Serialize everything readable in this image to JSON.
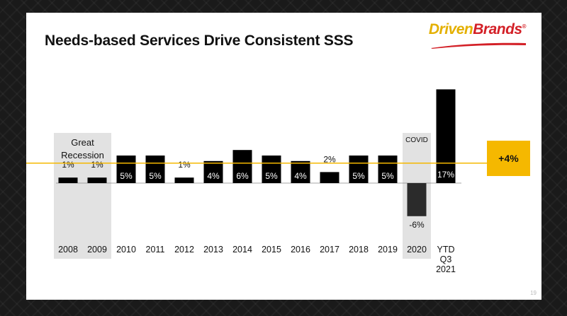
{
  "slide": {
    "title": "Needs-based Services Drive Consistent SSS",
    "logo": {
      "part1": "Driven",
      "part2": "Brands",
      "mark": "®"
    },
    "page_number": "19"
  },
  "colors": {
    "bar": "#000000",
    "covid_bar": "#2b2b2b",
    "average_line": "#f5b800",
    "callout_bg": "#f5b800",
    "shade": "#e2e2e2"
  },
  "chart_data": {
    "type": "bar",
    "title": "Needs-based Services Drive Consistent SSS",
    "categories": [
      "2008",
      "2009",
      "2010",
      "2011",
      "2012",
      "2013",
      "2014",
      "2015",
      "2016",
      "2017",
      "2018",
      "2019",
      "2020",
      "YTD Q3 2021"
    ],
    "category_lines": [
      [
        "2008"
      ],
      [
        "2009"
      ],
      [
        "2010"
      ],
      [
        "2011"
      ],
      [
        "2012"
      ],
      [
        "2013"
      ],
      [
        "2014"
      ],
      [
        "2015"
      ],
      [
        "2016"
      ],
      [
        "2017"
      ],
      [
        "2018"
      ],
      [
        "2019"
      ],
      [
        "2020"
      ],
      [
        "YTD",
        "Q3",
        "2021"
      ]
    ],
    "values": [
      1,
      1,
      5,
      5,
      1,
      4,
      6,
      5,
      4,
      2,
      5,
      5,
      -6,
      17
    ],
    "labels": [
      "1%",
      "1%",
      "5%",
      "5%",
      "1%",
      "4%",
      "6%",
      "5%",
      "4%",
      "2%",
      "5%",
      "5%",
      "-6%",
      "17%"
    ],
    "average": {
      "value": 4,
      "label": "+4%"
    },
    "annotations": [
      {
        "text": "Great Recession",
        "lines": [
          "Great",
          "Recession"
        ],
        "categories": [
          "2008",
          "2009"
        ]
      },
      {
        "text": "COVID",
        "lines": [
          "COVID"
        ],
        "categories": [
          "2020"
        ]
      }
    ],
    "xlabel": "",
    "ylabel": "",
    "ylim": [
      -6,
      17
    ],
    "grid": false,
    "legend": "none"
  }
}
